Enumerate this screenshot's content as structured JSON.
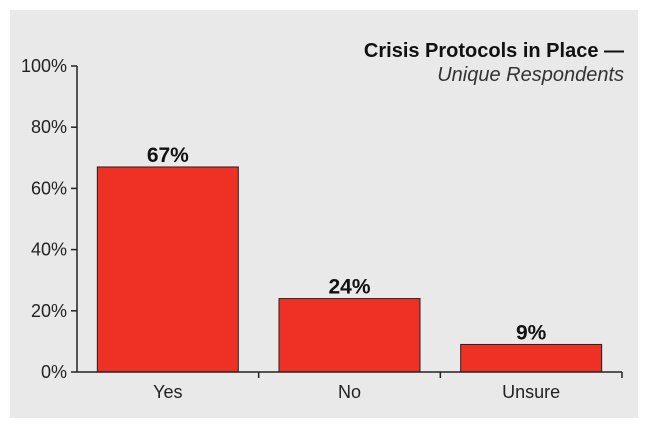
{
  "chart_data": {
    "type": "bar",
    "title": "Crisis Protocols in Place —",
    "subtitle": "Unique Respondents",
    "categories": [
      "Yes",
      "No",
      "Unsure"
    ],
    "values": [
      67,
      24,
      9
    ],
    "data_labels": [
      "67%",
      "24%",
      "9%"
    ],
    "yticks": [
      "0%",
      "20%",
      "40%",
      "60%",
      "80%",
      "100%"
    ],
    "ylim": [
      0,
      100
    ],
    "xlabel": "",
    "ylabel": "",
    "grid": false,
    "bar_color": "#ee3124",
    "background_color": "#e9e9e9"
  }
}
